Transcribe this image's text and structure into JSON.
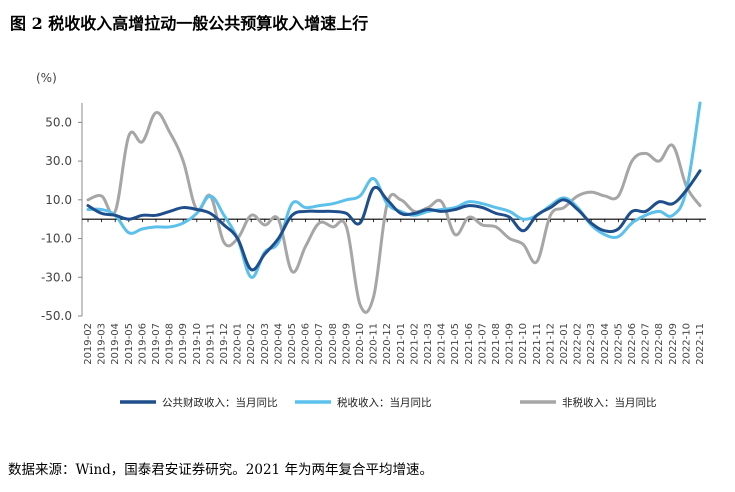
{
  "figure": {
    "title": "图 2 税收收入高增拉动一般公共预算收入增速上行",
    "source": "数据来源：Wind，国泰君安证券研究。2021 年为两年复合平均增速。"
  },
  "colors": {
    "public_fiscal": "#1f4e8c",
    "tax": "#5bc0eb",
    "non_tax": "#a6a6a6"
  },
  "chart_data": {
    "type": "line",
    "title": "",
    "xlabel": "",
    "ylabel": "(%)",
    "ylim": [
      -50,
      60
    ],
    "yticks": [
      "-50.0",
      "-30.0",
      "-10.0",
      "10.0",
      "30.0",
      "50.0"
    ],
    "ytick_values": [
      -50,
      -30,
      -10,
      10,
      30,
      50
    ],
    "grid": false,
    "legend": "bottom",
    "x": [
      "2019-02",
      "2019-03",
      "2019-04",
      "2019-05",
      "2019-06",
      "2019-07",
      "2019-08",
      "2019-09",
      "2019-10",
      "2019-11",
      "2019-12",
      "2020-01",
      "2020-02",
      "2020-03",
      "2020-04",
      "2020-05",
      "2020-06",
      "2020-07",
      "2020-08",
      "2020-09",
      "2020-10",
      "2020-11",
      "2020-12",
      "2021-01",
      "2021-02",
      "2021-03",
      "2021-04",
      "2021-05",
      "2021-06",
      "2021-07",
      "2021-08",
      "2021-09",
      "2021-10",
      "2021-11",
      "2021-12",
      "2022-01",
      "2022-02",
      "2022-03",
      "2022-04",
      "2022-05",
      "2022-06",
      "2022-07",
      "2022-08",
      "2022-09",
      "2022-10",
      "2022-11"
    ],
    "series": [
      {
        "name": "公共财政收入：当月同比",
        "color_key": "public_fiscal",
        "values": [
          7,
          3,
          2,
          0,
          2,
          2,
          4,
          6,
          5,
          3,
          -3,
          -10,
          -26,
          -18,
          -10,
          2,
          4,
          4,
          4,
          3,
          -2,
          16,
          10,
          3,
          3,
          5,
          4,
          5,
          7,
          6,
          3,
          1,
          -6,
          2,
          6,
          10,
          5,
          -2,
          -6,
          -5,
          4,
          4,
          9,
          8,
          15,
          25
        ]
      },
      {
        "name": "税收收入：当月同比",
        "color_key": "tax",
        "values": [
          5,
          5,
          2,
          -7,
          -5,
          -4,
          -4,
          -2,
          3,
          12,
          2,
          -10,
          -30,
          -17,
          -12,
          8,
          6,
          7,
          8,
          10,
          12,
          21,
          8,
          4,
          2,
          4,
          5,
          6,
          9,
          8,
          6,
          4,
          0,
          2,
          7,
          11,
          6,
          -3,
          -8,
          -9,
          -2,
          2,
          4,
          2,
          15,
          60
        ]
      },
      {
        "name": "非税收入：当月同比",
        "color_key": "non_tax",
        "values": [
          10,
          12,
          4,
          43,
          40,
          55,
          45,
          30,
          5,
          12,
          -12,
          -10,
          2,
          -3,
          0,
          -27,
          -14,
          -2,
          -4,
          -4,
          -44,
          -40,
          8,
          10,
          4,
          6,
          9,
          -8,
          1,
          -3,
          -4,
          -10,
          -13,
          -22,
          2,
          6,
          12,
          14,
          12,
          12,
          30,
          34,
          30,
          38,
          17,
          7
        ]
      }
    ]
  }
}
